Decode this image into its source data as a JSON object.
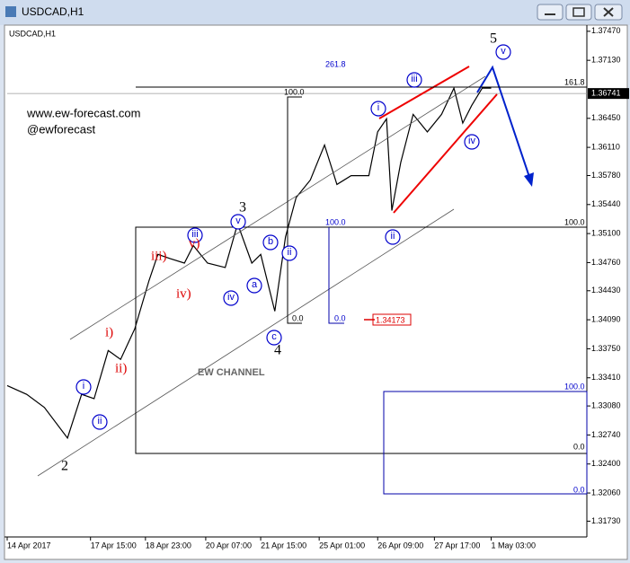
{
  "window_title": "USDCAD,H1",
  "chart_data": {
    "type": "line",
    "title": "USDCAD,H1",
    "x": [
      0,
      11,
      21,
      34,
      42,
      49,
      57,
      64,
      72,
      80,
      85,
      92,
      100,
      105,
      113,
      123,
      130,
      138,
      143,
      151,
      157,
      163,
      171,
      179,
      186,
      194,
      204,
      209,
      214,
      217,
      222,
      229,
      237,
      245,
      252,
      257,
      262,
      268,
      273
    ],
    "series": [
      {
        "color": "#000000",
        "values": [
          1.33319,
          1.33216,
          1.33062,
          1.32704,
          1.33216,
          1.33165,
          1.33729,
          1.33626,
          1.33985,
          1.34549,
          1.34856,
          1.34805,
          1.34754,
          1.34959,
          1.34754,
          1.34702,
          1.35215,
          1.34754,
          1.34856,
          1.3419,
          1.35061,
          1.35522,
          1.35727,
          1.36137,
          1.35676,
          1.35779,
          1.35779,
          1.36291,
          1.36445,
          1.35369,
          1.35932,
          1.36496,
          1.36291,
          1.36496,
          1.36804,
          1.36394,
          1.36599,
          1.36804,
          1.36804
        ]
      }
    ],
    "xlim": [
      0,
      327
    ],
    "xticks": [
      {
        "value": 0,
        "label": "14 Apr 2017"
      },
      {
        "value": 47,
        "label": "17 Apr 15:00"
      },
      {
        "value": 78,
        "label": "18 Apr 23:00"
      },
      {
        "value": 112,
        "label": "20 Apr 07:00"
      },
      {
        "value": 143,
        "label": "21 Apr 15:00"
      },
      {
        "value": 176,
        "label": "25 Apr 01:00"
      },
      {
        "value": 209,
        "label": "26 Apr 09:00"
      },
      {
        "value": 241,
        "label": "27 Apr 17:00"
      },
      {
        "value": 273,
        "label": "1 May 03:00"
      }
    ],
    "ylim": [
      1.31545,
      1.37521
    ],
    "yticks": [
      {
        "value": 1.3747,
        "label": "1.37470"
      },
      {
        "value": 1.3713,
        "label": "1.37130"
      },
      {
        "value": 1.3645,
        "label": "1.36450"
      },
      {
        "value": 1.3611,
        "label": "1.36110"
      },
      {
        "value": 1.3578,
        "label": "1.35780"
      },
      {
        "value": 1.3544,
        "label": "1.35440"
      },
      {
        "value": 1.351,
        "label": "1.35100"
      },
      {
        "value": 1.3476,
        "label": "1.34760"
      },
      {
        "value": 1.3443,
        "label": "1.34430"
      },
      {
        "value": 1.3409,
        "label": "1.34090"
      },
      {
        "value": 1.3375,
        "label": "1.33750"
      },
      {
        "value": 1.3341,
        "label": "1.33410"
      },
      {
        "value": 1.3308,
        "label": "1.33080"
      },
      {
        "value": 1.3274,
        "label": "1.32740"
      },
      {
        "value": 1.324,
        "label": "1.32400"
      },
      {
        "value": 1.3206,
        "label": "1.32060"
      },
      {
        "value": 1.3173,
        "label": "1.31730"
      }
    ],
    "current_price": 1.36741,
    "annotations": [
      "www.ew-forecast.com",
      "@ewforecast",
      "EW CHANNEL",
      "261.8",
      "161.8",
      "100.0",
      "100.0",
      "100.0",
      "0.0",
      "0.0",
      "1.34173",
      "100.0",
      "0.0",
      "0.0",
      "5",
      "v",
      "iii",
      "i",
      "iv",
      "ii",
      "3",
      "v",
      "iii",
      "b",
      "ii",
      "a",
      "iv",
      "c",
      "4",
      "2",
      "i",
      "ii",
      "i)",
      "ii)",
      "iii)",
      "iv)",
      "v)"
    ]
  }
}
